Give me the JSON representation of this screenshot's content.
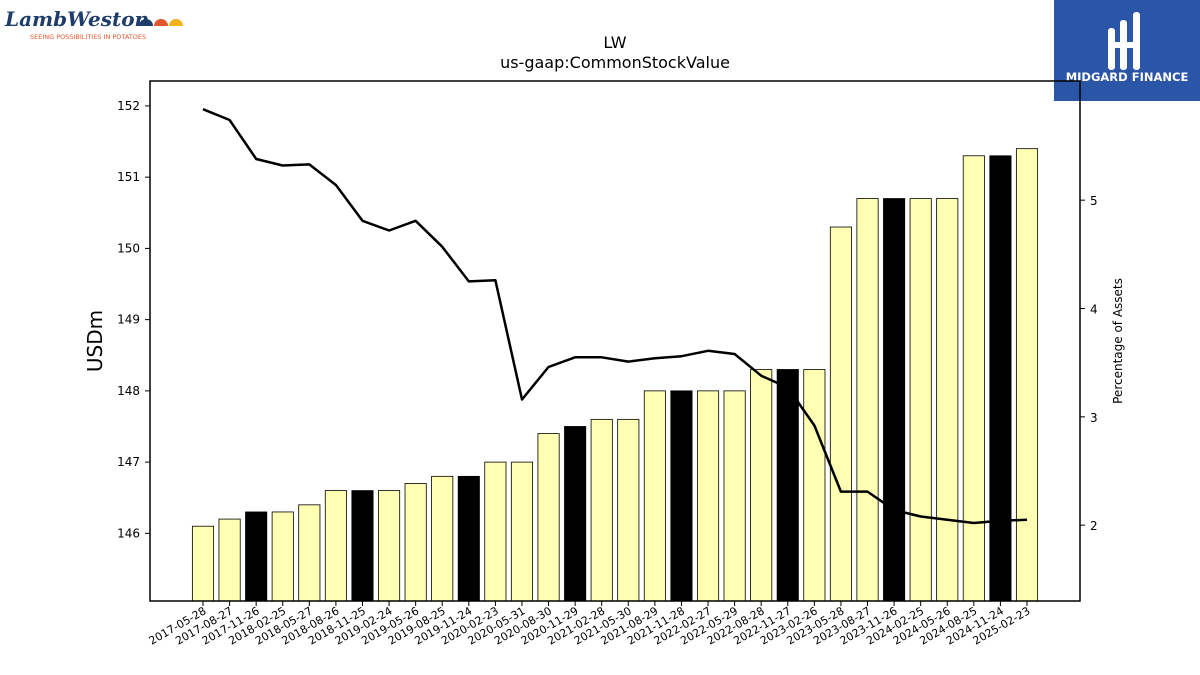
{
  "logos": {
    "lambweston_name": "LambWeston",
    "lambweston_tagline": "SEEING POSSIBILITIES IN POTATOES",
    "midgard_name": "MIDGARD FINANCE"
  },
  "chart_data": {
    "type": "bar",
    "title": "LW",
    "subtitle": "us-gaap:CommonStockValue",
    "ylabel": "USDm",
    "y2label": "Percentage of Assets",
    "ylim": [
      145.05,
      152.35
    ],
    "y2lim": [
      1.3,
      6.1
    ],
    "yticks": [
      146,
      147,
      148,
      149,
      150,
      151,
      152
    ],
    "y2ticks": [
      2,
      3,
      4,
      5
    ],
    "categories": [
      "2017-05-28",
      "2017-08-27",
      "2017-11-26",
      "2018-02-25",
      "2018-05-27",
      "2018-08-26",
      "2018-11-25",
      "2019-02-24",
      "2019-05-26",
      "2019-08-25",
      "2019-11-24",
      "2020-02-23",
      "2020-05-31",
      "2020-08-30",
      "2020-11-29",
      "2021-02-28",
      "2021-05-30",
      "2021-08-29",
      "2021-11-28",
      "2022-02-27",
      "2022-05-29",
      "2022-08-28",
      "2022-11-27",
      "2023-02-26",
      "2023-05-28",
      "2023-08-27",
      "2023-11-26",
      "2024-02-25",
      "2024-05-26",
      "2024-08-25",
      "2024-11-24",
      "2025-02-23"
    ],
    "series": [
      {
        "kind": "bar",
        "values": [
          146.1,
          146.2,
          146.3,
          146.3,
          146.4,
          146.6,
          146.6,
          146.6,
          146.7,
          146.8,
          146.8,
          147.0,
          147.0,
          147.4,
          147.5,
          147.6,
          147.6,
          148.0,
          148.0,
          148.0,
          148.0,
          148.3,
          148.3,
          148.3,
          150.3,
          150.7,
          150.7,
          150.7,
          150.7,
          151.3,
          151.3,
          151.4
        ],
        "highlight": [
          false,
          false,
          true,
          false,
          false,
          false,
          true,
          false,
          false,
          false,
          true,
          false,
          false,
          false,
          true,
          false,
          false,
          false,
          true,
          false,
          false,
          false,
          true,
          false,
          false,
          false,
          true,
          false,
          false,
          false,
          true,
          false
        ]
      },
      {
        "kind": "line",
        "axis": "right",
        "values": [
          5.84,
          5.74,
          5.38,
          5.32,
          5.33,
          5.14,
          4.81,
          4.72,
          4.81,
          4.57,
          4.25,
          4.26,
          3.16,
          3.46,
          3.55,
          3.55,
          3.51,
          3.54,
          3.56,
          3.61,
          3.58,
          3.38,
          3.27,
          2.92,
          2.31,
          2.31,
          2.14,
          2.08,
          2.05,
          2.02,
          2.04,
          2.05
        ]
      }
    ],
    "colors": {
      "bar": "#ffffb3",
      "highlight": "#000000",
      "line": "#000000"
    }
  }
}
